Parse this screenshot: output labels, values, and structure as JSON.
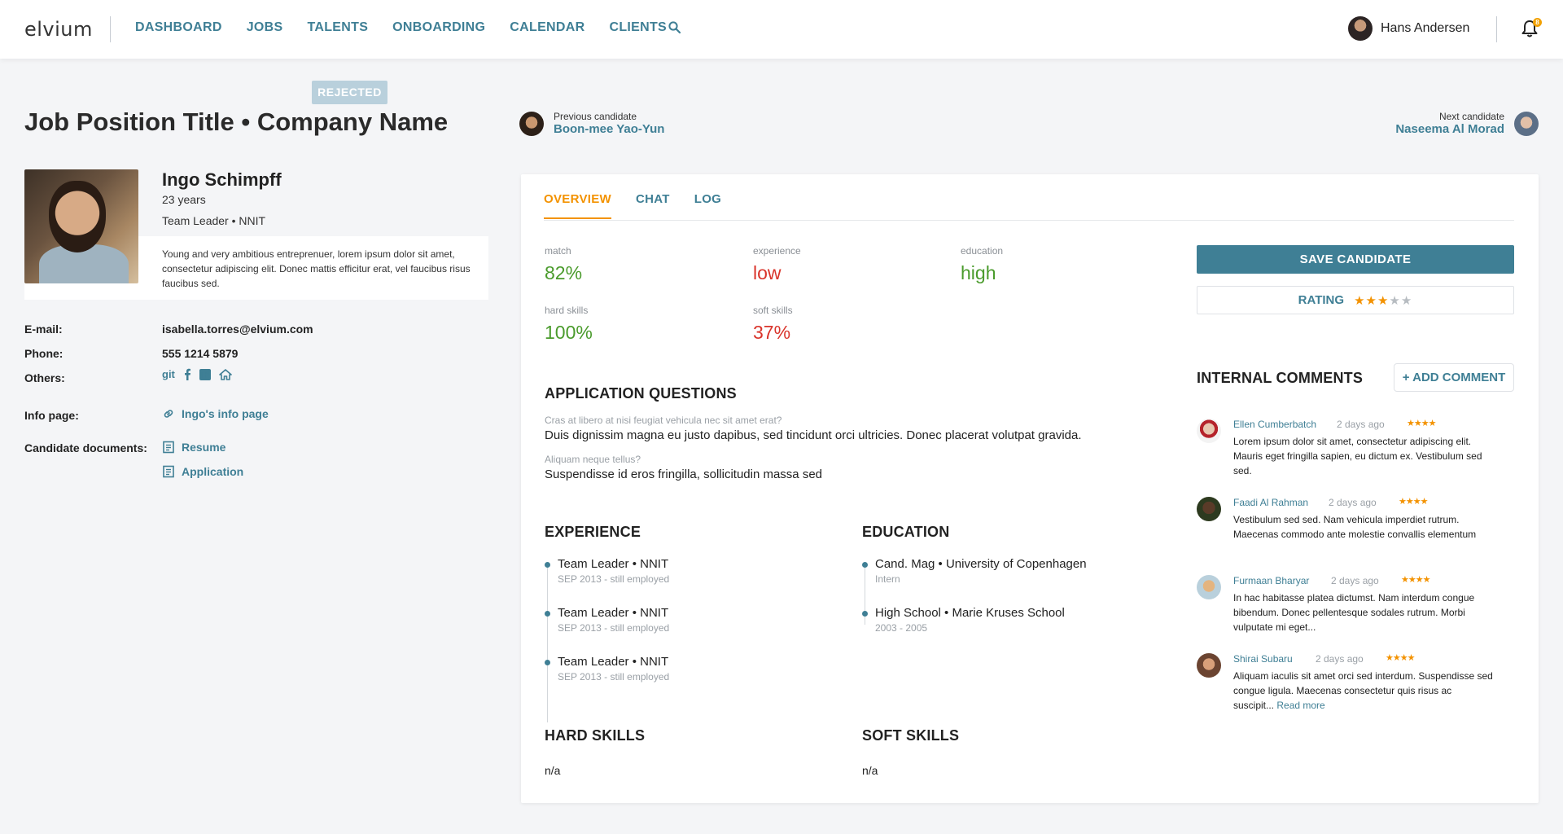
{
  "nav": {
    "logo": "elvium",
    "items": [
      "DASHBOARD",
      "JOBS",
      "TALENTS",
      "ONBOARDING",
      "CALENDAR",
      "CLIENTS"
    ],
    "search_icon": "search-icon",
    "user_name": "Hans Andersen",
    "notification_count": "8"
  },
  "status": "REJECTED",
  "job_title": "Job Position Title • Company Name",
  "candidate": {
    "name": "Ingo Schimpff",
    "age": "23 years",
    "role": "Team Leader • NNIT",
    "bio": "Young and very ambitious entreprenuer, lorem ipsum dolor sit amet, consectetur adipiscing elit. Donec mattis efficitur erat, vel faucibus risus faucibus sed.",
    "email_label": "E-mail:",
    "email": "isabella.torres@elvium.com",
    "phone_label": "Phone:",
    "phone": "555 1214 5879",
    "others_label": "Others:",
    "others_git": "git",
    "info_label": "Info page:",
    "info_link": "Ingo's info page",
    "docs_label": "Candidate documents:",
    "docs": [
      "Resume",
      "Application"
    ]
  },
  "prev_candidate": {
    "label": "Previous candidate",
    "name": "Boon-mee Yao-Yun"
  },
  "next_candidate": {
    "label": "Next candidate",
    "name": "Naseema Al Morad"
  },
  "tabs": [
    "OVERVIEW",
    "CHAT",
    "LOG"
  ],
  "metrics": [
    {
      "label": "match",
      "value": "82%",
      "status": "good"
    },
    {
      "label": "experience",
      "value": "low",
      "status": "bad"
    },
    {
      "label": "education",
      "value": "high",
      "status": "good"
    },
    {
      "label": "hard skills",
      "value": "100%",
      "status": "good"
    },
    {
      "label": "soft skills",
      "value": "37%",
      "status": "bad"
    }
  ],
  "application_questions": {
    "heading": "APPLICATION QUESTIONS",
    "items": [
      {
        "q": "Cras at libero at nisi feugiat vehicula nec sit amet erat?",
        "a": "Duis dignissim magna eu justo dapibus, sed tincidunt orci ultricies. Donec placerat volutpat gravida."
      },
      {
        "q": "Aliquam neque tellus?",
        "a": "Suspendisse id eros fringilla, sollicitudin massa sed"
      }
    ]
  },
  "experience": {
    "heading": "EXPERIENCE",
    "items": [
      {
        "title": "Team Leader • NNIT",
        "sub": "SEP 2013 - still employed"
      },
      {
        "title": "Team Leader • NNIT",
        "sub": "SEP 2013 - still employed"
      },
      {
        "title": "Team Leader • NNIT",
        "sub": "SEP 2013 - still employed"
      }
    ]
  },
  "education": {
    "heading": "EDUCATION",
    "items": [
      {
        "title": "Cand. Mag • University of Copenhagen",
        "sub": "Intern"
      },
      {
        "title": "High School • Marie Kruses School",
        "sub": "2003 - 2005"
      }
    ]
  },
  "hard_skills": {
    "heading": "HARD SKILLS",
    "value": "n/a"
  },
  "soft_skills": {
    "heading": "SOFT SKILLS",
    "value": "n/a"
  },
  "actions": {
    "save": "SAVE CANDIDATE",
    "rating_label": "RATING",
    "rating": 3,
    "rating_max": 5
  },
  "comments": {
    "heading": "INTERNAL COMMENTS",
    "add_label": "+ ADD COMMENT",
    "items": [
      {
        "author": "Ellen Cumberbatch",
        "time": "2 days ago",
        "stars": "★★★★",
        "text": "Lorem ipsum dolor sit amet, consectetur adipiscing elit. Mauris eget fringilla sapien, eu dictum ex. Vestibulum sed sed."
      },
      {
        "author": "Faadi Al Rahman",
        "time": "2 days ago",
        "stars": "★★★★",
        "text": "Vestibulum sed sed. Nam vehicula imperdiet rutrum. Maecenas commodo ante molestie convallis elementum"
      },
      {
        "author": "Furmaan Bharyar",
        "time": "2 days ago",
        "stars": "★★★★",
        "text": "In hac habitasse platea dictumst. Nam interdum congue bibendum. Donec pellentesque sodales rutrum. Morbi vulputate mi eget..."
      },
      {
        "author": "Shirai Subaru",
        "time": "2 days ago",
        "stars": "★★★★",
        "text": "Aliquam iaculis sit amet orci sed interdum. Suspendisse sed congue ligula. Maecenas consectetur quis risus ac suscipit...",
        "read_more": "Read more"
      }
    ]
  }
}
